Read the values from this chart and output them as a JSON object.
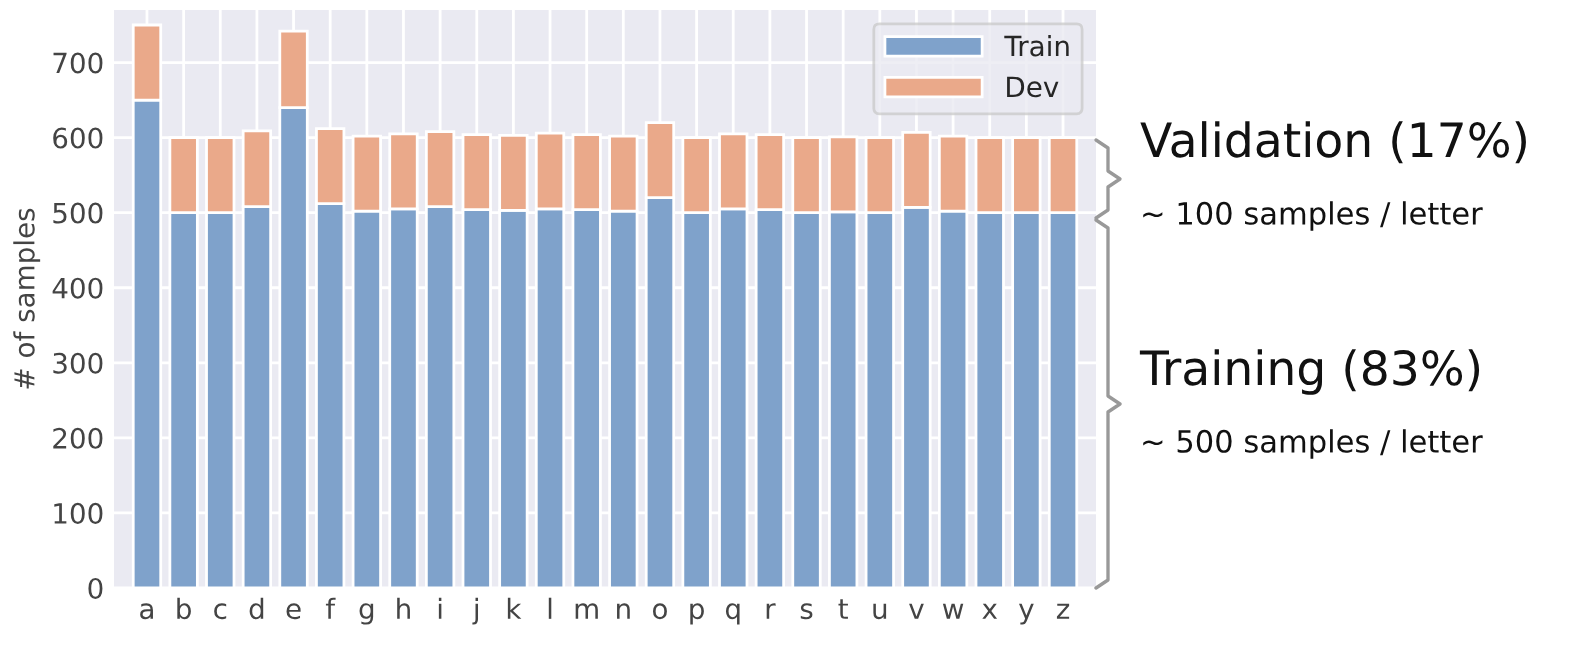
{
  "chart_data": {
    "type": "bar",
    "stacked": true,
    "ylabel": "# of samples",
    "categories": [
      "a",
      "b",
      "c",
      "d",
      "e",
      "f",
      "g",
      "h",
      "i",
      "j",
      "k",
      "l",
      "m",
      "n",
      "o",
      "p",
      "q",
      "r",
      "s",
      "t",
      "u",
      "v",
      "w",
      "x",
      "y",
      "z"
    ],
    "series": [
      {
        "name": "Train",
        "color": "#7fa2cb",
        "values": [
          650,
          500,
          500,
          508,
          640,
          512,
          502,
          505,
          508,
          504,
          503,
          505,
          504,
          502,
          520,
          500,
          505,
          504,
          500,
          501,
          500,
          507,
          502,
          500,
          500,
          500
        ]
      },
      {
        "name": "Dev",
        "color": "#eaa98a",
        "values": [
          100,
          100,
          100,
          101,
          102,
          100,
          100,
          100,
          100,
          100,
          100,
          101,
          100,
          100,
          100,
          100,
          100,
          100,
          100,
          100,
          100,
          100,
          100,
          100,
          100,
          100
        ]
      }
    ],
    "ylim": [
      0,
      770
    ],
    "yticks": [
      0,
      100,
      200,
      300,
      400,
      500,
      600,
      700
    ],
    "grid": true,
    "legend": "top right",
    "annotations": [
      "Validation (17%)",
      "~ 100 samples / letter",
      "Training (83%)",
      "~ 500 samples / letter"
    ]
  }
}
